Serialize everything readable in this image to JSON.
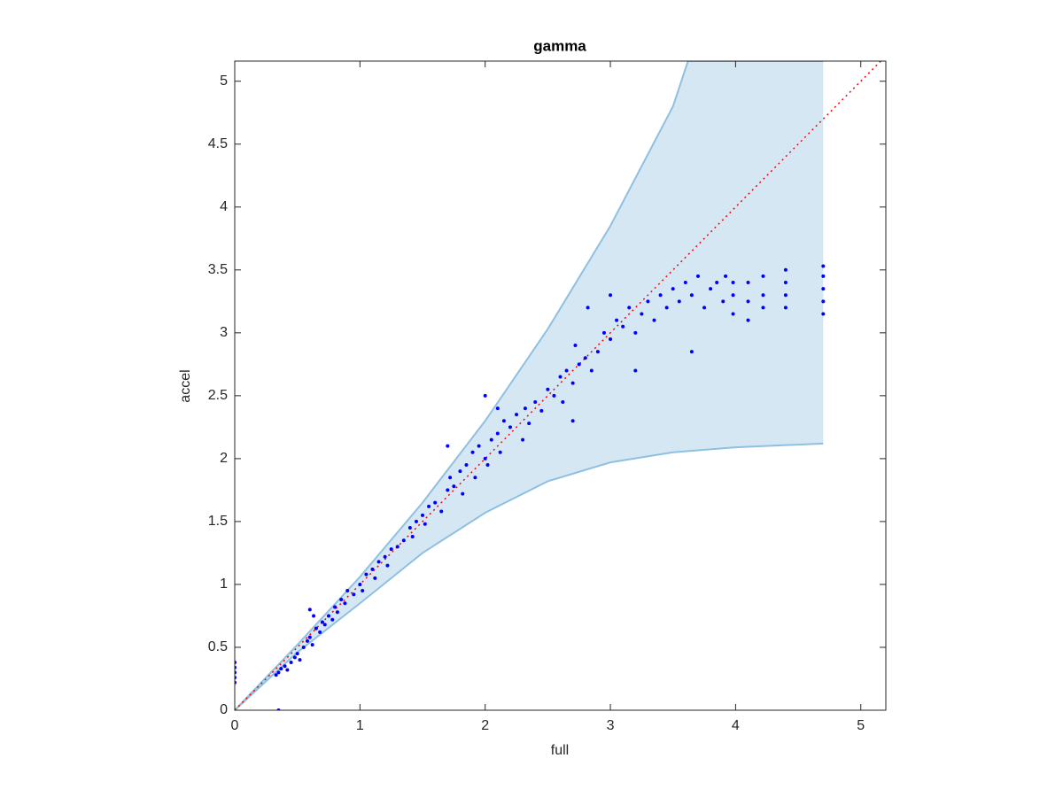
{
  "chart_data": {
    "type": "scatter",
    "title": "gamma",
    "x_label": "full",
    "y_label": "accel",
    "xlim": [
      0,
      5.2
    ],
    "ylim": [
      0,
      5.16
    ],
    "xticks": [
      0,
      1,
      2,
      3,
      4,
      5
    ],
    "yticks": [
      0,
      0.5,
      1,
      1.5,
      2,
      2.5,
      3,
      3.5,
      4,
      4.5,
      5
    ],
    "band": {
      "color": "#d6e7f4",
      "edge_color": "#8fc0e0",
      "x": [
        0,
        0.5,
        1,
        1.5,
        2,
        2.5,
        3,
        3.5,
        3.62,
        4,
        4.7
      ],
      "upper": [
        0,
        0.52,
        1.06,
        1.65,
        2.3,
        3.03,
        3.85,
        4.8,
        5.16,
        5.16,
        5.16
      ],
      "lower": [
        0,
        0.46,
        0.85,
        1.25,
        1.57,
        1.82,
        1.97,
        2.05,
        2.06,
        2.09,
        2.12
      ]
    },
    "reference": {
      "color": "#ff0000",
      "x": [
        0,
        5.2
      ],
      "values": [
        0,
        5.2
      ]
    },
    "points": {
      "color": "#0000ff",
      "x": [
        0,
        0,
        0,
        0,
        0,
        0.33,
        0.35,
        0.37,
        0.4,
        0.42,
        0.45,
        0.48,
        0.5,
        0.52,
        0.55,
        0.58,
        0.6,
        0.62,
        0.65,
        0.68,
        0.7,
        0.72,
        0.75,
        0.78,
        0.8,
        0.82,
        0.85,
        0.88,
        0.9,
        0.95,
        0.35,
        0.6,
        0.63,
        1.0,
        1.02,
        1.05,
        1.1,
        1.12,
        1.15,
        1.2,
        1.22,
        1.25,
        1.3,
        1.35,
        1.4,
        1.42,
        1.45,
        1.5,
        1.52,
        1.55,
        1.6,
        1.65,
        1.7,
        1.72,
        1.75,
        1.8,
        1.82,
        1.85,
        1.9,
        1.92,
        1.95,
        2.0,
        2.02,
        2.05,
        2.1,
        2.12,
        2.15,
        2.2,
        2.25,
        2.3,
        2.32,
        2.35,
        2.4,
        2.45,
        2.5,
        2.55,
        2.6,
        2.62,
        2.65,
        2.7,
        2.72,
        2.75,
        2.8,
        2.82,
        2.85,
        2.9,
        2.95,
        3.0,
        3.05,
        3.1,
        3.15,
        3.2,
        3.25,
        3.3,
        3.35,
        3.4,
        3.45,
        3.5,
        3.55,
        3.6,
        3.65,
        3.7,
        3.75,
        3.8,
        3.85,
        3.9,
        3.92,
        3.98,
        3.98,
        3.98,
        4.1,
        4.1,
        4.1,
        4.22,
        4.22,
        4.22,
        4.4,
        4.4,
        4.4,
        4.4,
        4.7,
        4.7,
        4.7,
        4.7,
        4.7,
        2.0,
        1.7,
        2.7,
        3.65,
        3.2,
        2.1,
        3.0
      ],
      "values": [
        0.22,
        0.26,
        0.3,
        0.34,
        0.38,
        0.28,
        0.3,
        0.33,
        0.35,
        0.32,
        0.38,
        0.42,
        0.45,
        0.4,
        0.5,
        0.55,
        0.58,
        0.52,
        0.65,
        0.62,
        0.7,
        0.68,
        0.75,
        0.72,
        0.82,
        0.78,
        0.88,
        0.85,
        0.95,
        0.92,
        0,
        0.8,
        0.75,
        1.0,
        0.95,
        1.08,
        1.12,
        1.05,
        1.18,
        1.22,
        1.15,
        1.28,
        1.3,
        1.35,
        1.45,
        1.38,
        1.5,
        1.55,
        1.48,
        1.62,
        1.65,
        1.58,
        1.75,
        1.85,
        1.78,
        1.9,
        1.72,
        1.95,
        2.05,
        1.85,
        2.1,
        2.0,
        1.95,
        2.15,
        2.2,
        2.05,
        2.3,
        2.25,
        2.35,
        2.15,
        2.4,
        2.28,
        2.45,
        2.38,
        2.55,
        2.5,
        2.65,
        2.45,
        2.7,
        2.6,
        2.9,
        2.75,
        2.8,
        3.2,
        2.7,
        2.85,
        3.0,
        2.95,
        3.1,
        3.05,
        3.2,
        3.0,
        3.15,
        3.25,
        3.1,
        3.3,
        3.2,
        3.35,
        3.25,
        3.4,
        3.3,
        3.45,
        3.2,
        3.35,
        3.4,
        3.25,
        3.45,
        3.3,
        3.4,
        3.15,
        3.1,
        3.25,
        3.4,
        3.2,
        3.3,
        3.45,
        3.2,
        3.3,
        3.4,
        3.5,
        3.15,
        3.25,
        3.35,
        3.45,
        3.53,
        2.5,
        2.1,
        2.3,
        2.85,
        2.7,
        2.4,
        3.3
      ]
    }
  }
}
